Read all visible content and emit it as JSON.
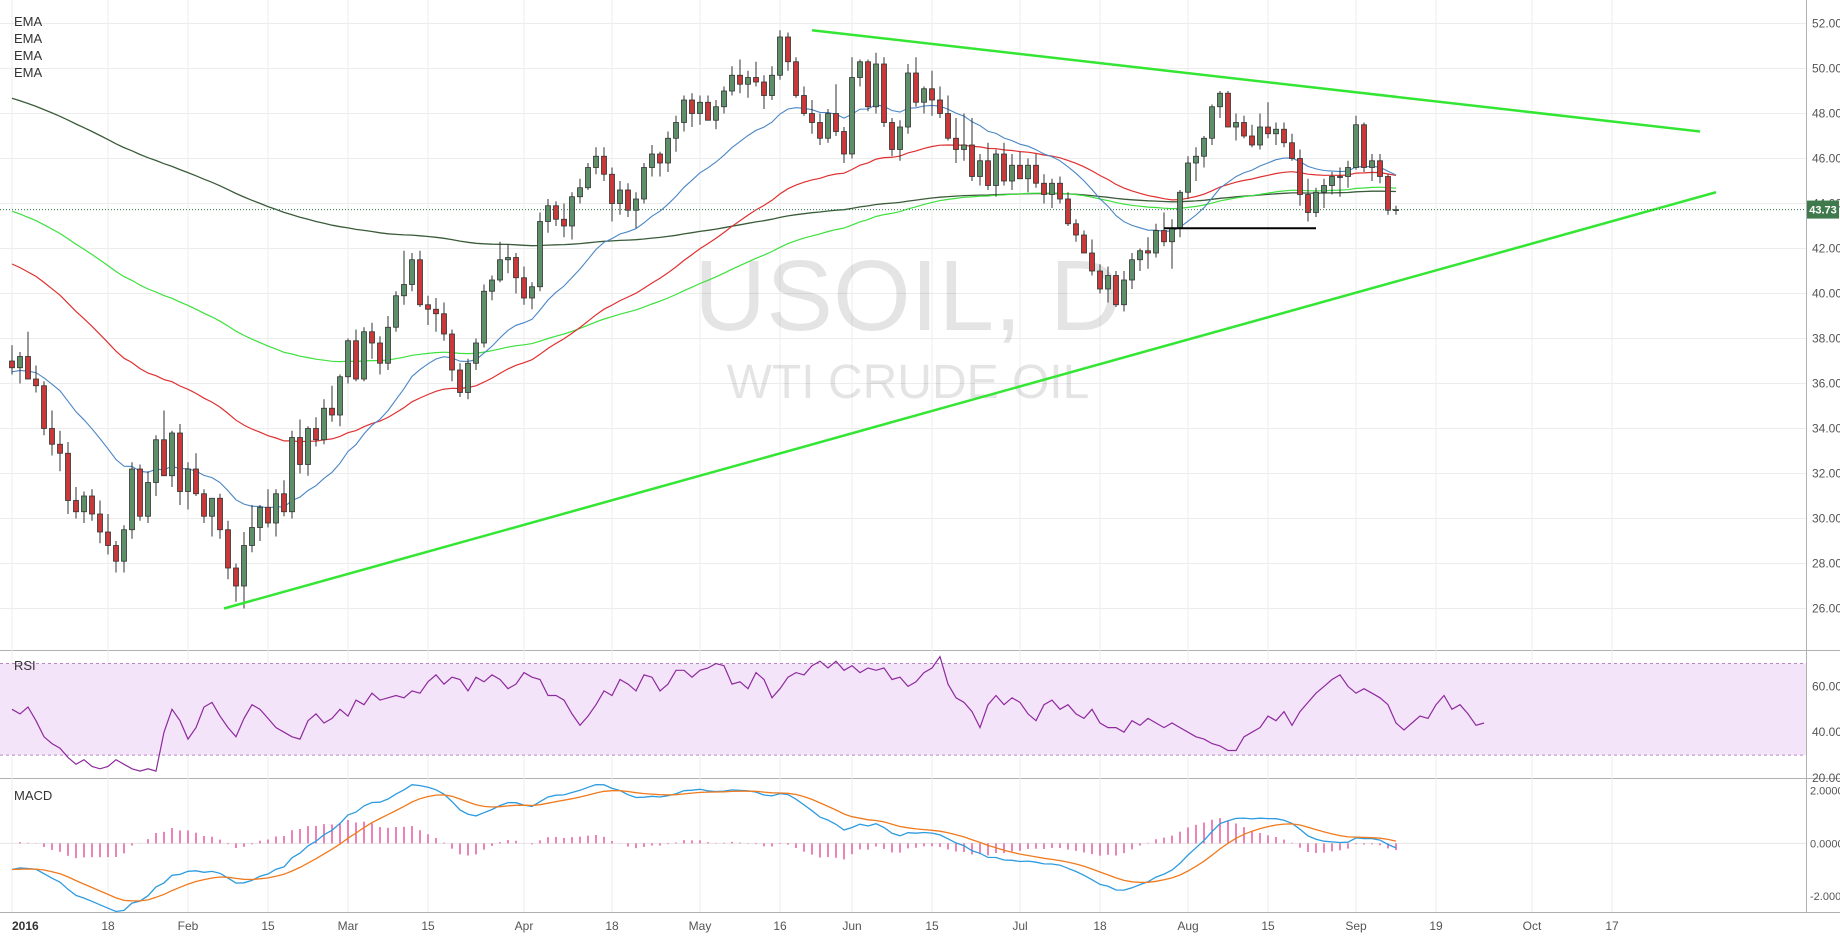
{
  "chart_data": [
    {
      "type": "candlestick",
      "watermark_symbol": "USOIL, D",
      "watermark_name": "WTI CRUDE OIL",
      "indicator_labels": [
        "EMA",
        "EMA",
        "EMA",
        "EMA"
      ],
      "x_tick_labels": [
        "2016",
        "18",
        "Feb",
        "15",
        "Mar",
        "15",
        "Apr",
        "18",
        "May",
        "16",
        "Jun",
        "15",
        "Jul",
        "18",
        "Aug",
        "15",
        "Sep",
        "19",
        "Oct",
        "17"
      ],
      "y_tick_labels": [
        "26.00",
        "28.00",
        "30.00",
        "32.00",
        "34.00",
        "36.00",
        "38.00",
        "40.00",
        "42.00",
        "44.00",
        "46.00",
        "48.00",
        "50.00",
        "52.00"
      ],
      "ylim": [
        24.6,
        52.6
      ],
      "grid": true,
      "last_price": "43.73",
      "colors": {
        "up": "#5e8f6b",
        "down": "#c83a3a",
        "ema_fast": "#4a86c5",
        "ema_50": "#e03030",
        "ema_100": "#3ee03e",
        "ema_200": "#3a5c3a",
        "trendline": "#33e633",
        "support": "#000000"
      },
      "candles_ohlc": [
        [
          37.0,
          37.7,
          36.4,
          36.7
        ],
        [
          36.7,
          37.4,
          36.0,
          37.2
        ],
        [
          37.2,
          38.3,
          36.5,
          36.2
        ],
        [
          36.2,
          36.8,
          35.6,
          35.9
        ],
        [
          35.9,
          36.1,
          33.7,
          34.0
        ],
        [
          34.0,
          34.8,
          32.8,
          33.3
        ],
        [
          33.3,
          33.9,
          32.1,
          32.9
        ],
        [
          32.9,
          33.4,
          30.2,
          30.8
        ],
        [
          30.8,
          31.4,
          30.0,
          30.3
        ],
        [
          30.3,
          31.2,
          29.8,
          31.0
        ],
        [
          31.0,
          31.3,
          29.9,
          30.2
        ],
        [
          30.2,
          30.8,
          28.9,
          29.4
        ],
        [
          29.4,
          30.2,
          28.4,
          28.8
        ],
        [
          28.8,
          29.0,
          27.6,
          28.1
        ],
        [
          28.1,
          29.7,
          27.6,
          29.5
        ],
        [
          29.5,
          32.5,
          29.1,
          32.2
        ],
        [
          32.2,
          32.4,
          29.9,
          30.1
        ],
        [
          30.1,
          32.1,
          29.8,
          31.6
        ],
        [
          31.6,
          33.7,
          31.0,
          33.5
        ],
        [
          33.5,
          34.8,
          32.9,
          31.9
        ],
        [
          31.9,
          33.9,
          31.4,
          33.8
        ],
        [
          33.8,
          34.2,
          30.6,
          31.2
        ],
        [
          31.2,
          32.5,
          30.4,
          32.2
        ],
        [
          32.2,
          32.9,
          31.0,
          31.1
        ],
        [
          31.1,
          31.3,
          29.8,
          30.1
        ],
        [
          30.1,
          30.9,
          29.2,
          30.9
        ],
        [
          30.9,
          31.1,
          29.1,
          29.5
        ],
        [
          29.5,
          29.9,
          27.3,
          27.8
        ],
        [
          27.8,
          28.0,
          26.3,
          27.0
        ],
        [
          27.0,
          29.4,
          26.0,
          28.8
        ],
        [
          28.8,
          30.6,
          28.5,
          29.6
        ],
        [
          29.6,
          30.6,
          29.0,
          30.5
        ],
        [
          30.5,
          31.3,
          29.6,
          29.8
        ],
        [
          29.8,
          31.3,
          29.2,
          31.1
        ],
        [
          31.1,
          31.7,
          30.1,
          30.3
        ],
        [
          30.3,
          33.9,
          30.0,
          33.6
        ],
        [
          33.6,
          34.4,
          32.0,
          32.4
        ],
        [
          32.4,
          34.1,
          31.9,
          34.0
        ],
        [
          34.0,
          34.5,
          33.2,
          33.5
        ],
        [
          33.5,
          35.3,
          33.3,
          34.9
        ],
        [
          34.9,
          35.9,
          34.3,
          34.6
        ],
        [
          34.6,
          36.4,
          34.1,
          36.3
        ],
        [
          36.3,
          38.0,
          36.0,
          37.9
        ],
        [
          37.9,
          38.4,
          36.1,
          36.2
        ],
        [
          36.2,
          38.5,
          36.1,
          38.3
        ],
        [
          38.3,
          38.7,
          37.1,
          37.8
        ],
        [
          37.8,
          38.1,
          36.4,
          36.9
        ],
        [
          36.9,
          39.0,
          36.6,
          38.5
        ],
        [
          38.5,
          40.1,
          38.3,
          39.9
        ],
        [
          39.9,
          41.9,
          39.5,
          40.4
        ],
        [
          40.4,
          41.8,
          40.1,
          41.5
        ],
        [
          41.5,
          41.9,
          39.4,
          39.5
        ],
        [
          39.5,
          39.9,
          38.6,
          39.3
        ],
        [
          39.3,
          39.8,
          38.3,
          39.1
        ],
        [
          39.1,
          39.6,
          37.9,
          38.2
        ],
        [
          38.2,
          38.4,
          36.1,
          36.6
        ],
        [
          36.6,
          36.9,
          35.4,
          35.6
        ],
        [
          35.6,
          37.1,
          35.3,
          36.9
        ],
        [
          36.9,
          38.0,
          36.6,
          37.8
        ],
        [
          37.8,
          40.4,
          37.6,
          40.1
        ],
        [
          40.1,
          40.8,
          39.7,
          40.6
        ],
        [
          40.6,
          42.3,
          40.5,
          41.5
        ],
        [
          41.5,
          42.2,
          40.9,
          41.6
        ],
        [
          41.6,
          41.8,
          40.0,
          40.7
        ],
        [
          40.7,
          41.2,
          39.5,
          39.8
        ],
        [
          39.8,
          40.5,
          39.3,
          40.3
        ],
        [
          40.3,
          43.6,
          40.1,
          43.2
        ],
        [
          43.2,
          44.2,
          42.7,
          43.9
        ],
        [
          43.9,
          44.1,
          43.0,
          43.3
        ],
        [
          43.3,
          44.0,
          42.5,
          43.0
        ],
        [
          43.0,
          44.5,
          42.4,
          44.3
        ],
        [
          44.3,
          45.1,
          44.0,
          44.7
        ],
        [
          44.7,
          45.8,
          44.6,
          45.6
        ],
        [
          45.6,
          46.5,
          45.3,
          46.1
        ],
        [
          46.1,
          46.5,
          45.0,
          45.3
        ],
        [
          45.3,
          45.6,
          43.2,
          44.0
        ],
        [
          44.0,
          45.0,
          43.5,
          44.6
        ],
        [
          44.6,
          44.9,
          43.4,
          43.7
        ],
        [
          43.7,
          44.5,
          42.9,
          44.2
        ],
        [
          44.2,
          45.8,
          44.0,
          45.6
        ],
        [
          45.6,
          46.6,
          45.2,
          46.2
        ],
        [
          46.2,
          46.3,
          45.2,
          45.8
        ],
        [
          45.8,
          47.2,
          45.4,
          46.9
        ],
        [
          46.9,
          47.9,
          46.3,
          47.6
        ],
        [
          47.6,
          48.8,
          47.2,
          48.6
        ],
        [
          48.6,
          48.9,
          47.4,
          48.0
        ],
        [
          48.0,
          48.8,
          47.5,
          48.5
        ],
        [
          48.5,
          48.8,
          47.7,
          47.7
        ],
        [
          47.7,
          48.6,
          47.3,
          48.3
        ],
        [
          48.3,
          49.2,
          48.0,
          49.0
        ],
        [
          49.0,
          50.1,
          48.8,
          49.7
        ],
        [
          49.7,
          50.4,
          48.9,
          49.3
        ],
        [
          49.3,
          49.9,
          48.7,
          49.6
        ],
        [
          49.6,
          50.3,
          49.2,
          49.4
        ],
        [
          49.4,
          49.7,
          48.2,
          48.8
        ],
        [
          48.8,
          50.1,
          48.6,
          49.7
        ],
        [
          49.7,
          51.7,
          49.5,
          51.4
        ],
        [
          51.4,
          51.6,
          49.9,
          50.3
        ],
        [
          50.3,
          50.5,
          48.7,
          48.8
        ],
        [
          48.8,
          49.2,
          47.9,
          48.0
        ],
        [
          48.0,
          48.6,
          47.1,
          47.6
        ],
        [
          47.6,
          48.0,
          46.6,
          46.9
        ],
        [
          46.9,
          48.2,
          46.7,
          48.0
        ],
        [
          48.0,
          49.3,
          47.0,
          47.2
        ],
        [
          47.2,
          47.4,
          45.8,
          46.2
        ],
        [
          46.2,
          50.5,
          46.0,
          49.6
        ],
        [
          49.6,
          50.4,
          49.2,
          50.3
        ],
        [
          50.3,
          50.4,
          48.1,
          48.3
        ],
        [
          48.3,
          50.7,
          48.0,
          50.2
        ],
        [
          50.2,
          50.5,
          47.4,
          47.6
        ],
        [
          47.6,
          47.8,
          46.1,
          46.4
        ],
        [
          46.4,
          47.7,
          45.9,
          47.4
        ],
        [
          47.4,
          50.2,
          47.1,
          49.8
        ],
        [
          49.8,
          50.5,
          48.3,
          48.5
        ],
        [
          48.5,
          49.2,
          48.0,
          49.1
        ],
        [
          49.1,
          49.9,
          47.9,
          48.6
        ],
        [
          48.6,
          49.2,
          47.8,
          48.0
        ],
        [
          48.0,
          48.8,
          46.8,
          46.9
        ],
        [
          46.9,
          47.8,
          45.8,
          46.4
        ],
        [
          46.4,
          48.0,
          45.9,
          46.6
        ],
        [
          46.6,
          47.8,
          45.0,
          45.2
        ],
        [
          45.2,
          46.2,
          44.8,
          45.9
        ],
        [
          45.9,
          46.7,
          44.6,
          44.8
        ],
        [
          44.8,
          46.4,
          44.3,
          46.2
        ],
        [
          46.2,
          46.7,
          44.8,
          45.0
        ],
        [
          45.0,
          46.2,
          44.6,
          45.7
        ],
        [
          45.7,
          46.3,
          45.1,
          45.1
        ],
        [
          45.1,
          46.0,
          44.5,
          45.7
        ],
        [
          45.7,
          46.2,
          44.7,
          44.9
        ],
        [
          44.9,
          45.3,
          44.0,
          44.4
        ],
        [
          44.4,
          45.1,
          43.8,
          44.9
        ],
        [
          44.9,
          45.2,
          44.0,
          44.2
        ],
        [
          44.2,
          44.5,
          43.0,
          43.1
        ],
        [
          43.1,
          43.3,
          42.3,
          42.6
        ],
        [
          42.6,
          42.8,
          41.8,
          41.8
        ],
        [
          41.8,
          42.4,
          40.8,
          41.0
        ],
        [
          41.0,
          41.3,
          40.0,
          40.2
        ],
        [
          40.2,
          41.2,
          39.6,
          40.8
        ],
        [
          40.8,
          41.0,
          39.4,
          39.5
        ],
        [
          39.5,
          41.0,
          39.2,
          40.6
        ],
        [
          40.6,
          41.8,
          40.2,
          41.5
        ],
        [
          41.5,
          42.0,
          41.0,
          41.9
        ],
        [
          41.9,
          42.5,
          41.1,
          41.8
        ],
        [
          41.8,
          43.1,
          41.6,
          42.8
        ],
        [
          42.8,
          43.6,
          42.1,
          42.3
        ],
        [
          42.3,
          43.3,
          41.1,
          42.9
        ],
        [
          42.9,
          44.6,
          42.5,
          44.5
        ],
        [
          44.5,
          46.1,
          44.2,
          45.8
        ],
        [
          45.8,
          46.5,
          45.0,
          46.1
        ],
        [
          46.1,
          47.0,
          45.6,
          46.9
        ],
        [
          46.9,
          48.4,
          46.6,
          48.3
        ],
        [
          48.3,
          49.0,
          47.8,
          48.9
        ],
        [
          48.9,
          49.0,
          47.4,
          47.4
        ],
        [
          47.4,
          48.0,
          46.8,
          47.6
        ],
        [
          47.6,
          47.9,
          46.9,
          47.0
        ],
        [
          47.0,
          47.5,
          46.5,
          46.6
        ],
        [
          46.6,
          48.0,
          46.4,
          47.4
        ],
        [
          47.4,
          48.5,
          46.9,
          47.1
        ],
        [
          47.1,
          47.6,
          46.6,
          47.3
        ],
        [
          47.3,
          47.6,
          46.5,
          46.7
        ],
        [
          46.7,
          47.1,
          45.9,
          46.0
        ],
        [
          46.0,
          46.4,
          43.9,
          44.4
        ],
        [
          44.4,
          45.1,
          43.2,
          43.6
        ],
        [
          43.6,
          44.7,
          43.4,
          44.5
        ],
        [
          44.5,
          45.1,
          43.8,
          44.8
        ],
        [
          44.8,
          45.4,
          44.4,
          45.2
        ],
        [
          45.2,
          45.6,
          44.3,
          45.2
        ],
        [
          45.2,
          45.9,
          44.7,
          45.6
        ],
        [
          45.6,
          47.9,
          45.5,
          47.5
        ],
        [
          47.5,
          47.6,
          45.4,
          45.6
        ],
        [
          45.6,
          46.2,
          45.0,
          45.9
        ],
        [
          45.9,
          46.2,
          44.9,
          45.2
        ],
        [
          45.2,
          45.3,
          43.5,
          43.7
        ],
        [
          43.7,
          43.9,
          43.5,
          43.73
        ]
      ],
      "rsi": {
        "title": "RSI",
        "ylim": [
          20,
          75
        ],
        "band": [
          30,
          70
        ],
        "y_tick_labels": [
          "20.00",
          "40.00",
          "60.00"
        ],
        "values": [
          50.0,
          48.0,
          51.0,
          45.0,
          38.0,
          35.0,
          33.0,
          29.0,
          26.0,
          28.0,
          25.0,
          24.0,
          25.0,
          28.0,
          26.0,
          24.0,
          23.0,
          24.0,
          23.0,
          40.0,
          50.0,
          45.0,
          37.0,
          42.0,
          51.0,
          53.0,
          47.0,
          42.0,
          38.0,
          46.0,
          52.0,
          50.0,
          46.0,
          42.0,
          40.0,
          38.0,
          37.0,
          45.0,
          48.0,
          44.0,
          46.0,
          50.0,
          47.0,
          54.0,
          52.0,
          57.0,
          54.0,
          55.0,
          56.0,
          55.0,
          58.0,
          57.0,
          62.0,
          65.0,
          61.0,
          64.0,
          63.0,
          58.0,
          64.0,
          62.0,
          65.0,
          63.0,
          59.0,
          61.0,
          66.0,
          64.0,
          63.0,
          56.0,
          56.0,
          54.0,
          48.0,
          43.0,
          47.0,
          52.0,
          58.0,
          56.0,
          63.0,
          61.0,
          58.0,
          65.0,
          64.0,
          58.0,
          61.0,
          67.0,
          67.0,
          64.0,
          67.0,
          68.0,
          70.0,
          69.0,
          61.0,
          62.0,
          59.0,
          66.0,
          63.0,
          55.0,
          59.0,
          64.0,
          66.0,
          65.0,
          69.0,
          71.0,
          68.0,
          71.0,
          67.0,
          69.0,
          66.0,
          68.0,
          67.0,
          68.0,
          63.0,
          64.0,
          60.0,
          62.0,
          66.0,
          68.0,
          73.0,
          61.0,
          55.0,
          53.0,
          49.0,
          42.0,
          52.0,
          56.0,
          52.0,
          55.0,
          53.0,
          48.0,
          45.0,
          52.0,
          54.0,
          50.0,
          52.0,
          48.0,
          46.0,
          50.0,
          44.0,
          42.0,
          42.0,
          40.0,
          45.0,
          43.0,
          46.0,
          44.0,
          42.0,
          44.0,
          42.0,
          40.0,
          38.0,
          37.0,
          35.0,
          34.0,
          32.0,
          32.0,
          38.0,
          40.0,
          42.0,
          47.0,
          45.0,
          49.0,
          43.0,
          49.0,
          53.0,
          57.0,
          60.0,
          63.0,
          65.0,
          60.0,
          57.0,
          59.0,
          57.0,
          55.0,
          52.0,
          44.0,
          41.0,
          44.0,
          47.0,
          46.0,
          52.0,
          56.0,
          50.0,
          52.0,
          48.0,
          43.0,
          44.0
        ]
      },
      "macd": {
        "title": "MACD",
        "ylim": [
          -2.6,
          2.4
        ],
        "y_tick_labels": [
          "-2.0000",
          "0.0000",
          "2.0000"
        ]
      }
    }
  ]
}
